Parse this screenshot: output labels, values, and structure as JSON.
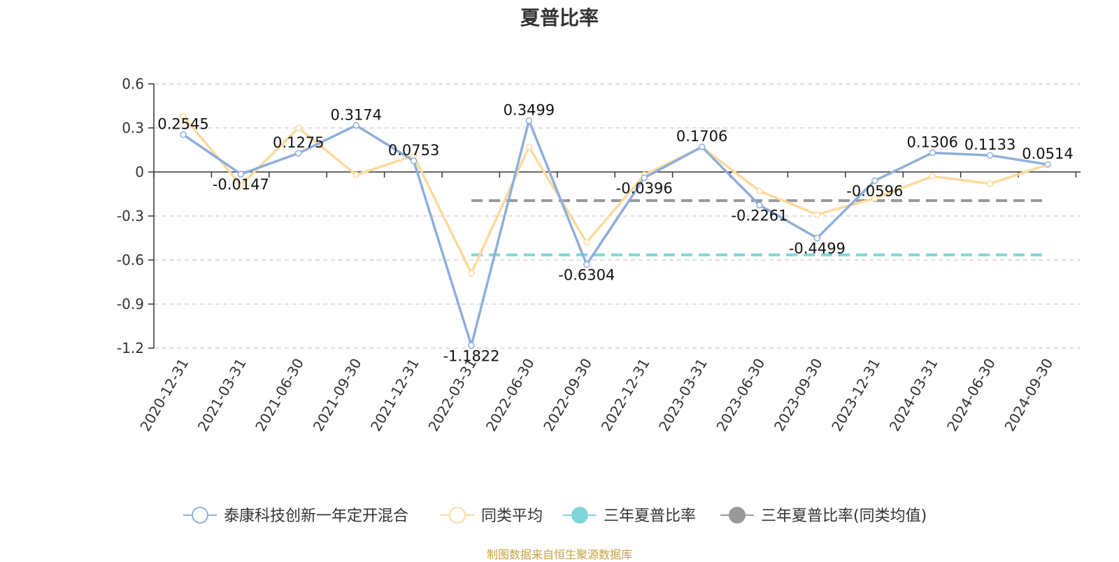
{
  "title": "夏普比率",
  "source_note": "制图数据来自恒生聚源数据库",
  "chart_data": {
    "type": "line",
    "categories": [
      "2020-12-31",
      "2021-03-31",
      "2021-06-30",
      "2021-09-30",
      "2021-12-31",
      "2022-03-31",
      "2022-06-30",
      "2022-09-30",
      "2022-12-31",
      "2023-03-31",
      "2023-06-30",
      "2023-09-30",
      "2023-12-31",
      "2024-03-31",
      "2024-06-30",
      "2024-09-30"
    ],
    "ylim": [
      -1.2,
      0.6
    ],
    "yticks": [
      "0.6",
      "0.3",
      "0",
      "-0.3",
      "-0.6",
      "-0.9",
      "-1.2"
    ],
    "grid": true,
    "legend_position": "bottom",
    "series": [
      {
        "name": "泰康科技创新一年定开混合",
        "color": "#8eaedb",
        "values": [
          0.2545,
          -0.0147,
          0.1275,
          0.3174,
          0.0753,
          -1.1822,
          0.3499,
          -0.6304,
          -0.0396,
          0.1706,
          -0.2261,
          -0.4499,
          -0.0596,
          0.1306,
          0.1133,
          0.0514
        ],
        "labels": [
          "0.2545",
          "-0.0147",
          "0.1275",
          "0.3174",
          "0.0753",
          "-1.1822",
          "0.3499",
          "-0.6304",
          "-0.0396",
          "0.1706",
          "-0.2261",
          "-0.4499",
          "-0.0596",
          "0.1306",
          "0.1133",
          "0.0514"
        ]
      },
      {
        "name": "同类平均",
        "color": "#fdd99c",
        "values": [
          0.38,
          -0.09,
          0.3,
          -0.02,
          0.11,
          -0.69,
          0.17,
          -0.48,
          -0.02,
          0.17,
          -0.13,
          -0.29,
          -0.18,
          -0.03,
          -0.08,
          0.05
        ]
      }
    ],
    "reference_lines": [
      {
        "name": "三年夏普比率",
        "color": "#7fd6d6",
        "value": -0.565,
        "from": "2022-03-31",
        "to": "2024-09-30"
      },
      {
        "name": "三年夏普比率(同类均值)",
        "color": "#999999",
        "value": -0.195,
        "from": "2022-03-31",
        "to": "2024-09-30"
      }
    ]
  }
}
